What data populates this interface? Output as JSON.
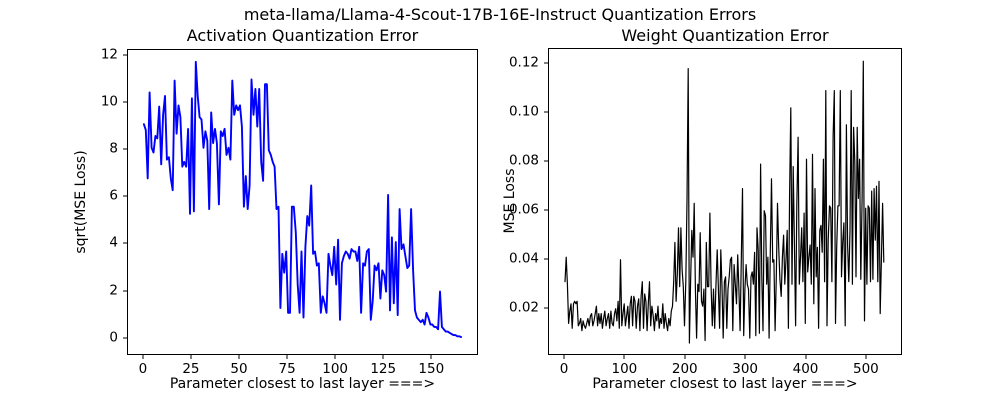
{
  "figure": {
    "suptitle": "meta-llama/Llama-4-Scout-17B-16E-Instruct Quantization Errors",
    "background": "#ffffff"
  },
  "chart_data": [
    {
      "type": "line",
      "title": "Activation Quantization Error",
      "xlabel": "Parameter closest to last layer ===>",
      "ylabel": "sqrt(MSE Loss)",
      "color": "#0000ff",
      "line_width": 1.9,
      "grid": false,
      "legend": null,
      "xlim": [
        -8.25,
        173.25
      ],
      "ylim": [
        -0.65,
        12.25
      ],
      "xticks": [
        0,
        25,
        50,
        75,
        100,
        125,
        150
      ],
      "xticklabels": [
        "0",
        "25",
        "50",
        "75",
        "100",
        "125",
        "150"
      ],
      "yticks": [
        0,
        2,
        4,
        6,
        8,
        10,
        12
      ],
      "yticklabels": [
        "0",
        "2",
        "4",
        "6",
        "8",
        "10",
        "12"
      ],
      "x_start": 0,
      "x_step": 1,
      "values": [
        9.1,
        8.85,
        6.8,
        10.45,
        8.1,
        7.9,
        8.6,
        8.5,
        9.85,
        7.4,
        9.5,
        10.3,
        7.6,
        7.7,
        6.8,
        6.3,
        10.95,
        8.7,
        9.9,
        9.4,
        7.3,
        7.5,
        7.3,
        8.9,
        5.3,
        10.2,
        5.4,
        11.75,
        10.3,
        9.4,
        9.3,
        8.1,
        8.8,
        8.4,
        5.5,
        9.6,
        8.3,
        8.9,
        8.3,
        5.7,
        8.8,
        8.6,
        8.9,
        7.8,
        8.1,
        7.6,
        10.95,
        9.5,
        9.9,
        9.7,
        9.9,
        9.0,
        5.6,
        6.9,
        5.5,
        6.5,
        11.0,
        9.5,
        10.6,
        9.0,
        10.6,
        7.5,
        6.7,
        10.8,
        10.8,
        8.0,
        7.8,
        7.5,
        7.3,
        5.5,
        5.6,
        1.3,
        3.6,
        2.8,
        3.7,
        1.1,
        1.1,
        5.6,
        5.6,
        4.5,
        2.3,
        1.1,
        3.7,
        0.9,
        3.9,
        5.2,
        4.8,
        6.5,
        3.6,
        3.7,
        3.1,
        3.2,
        1.1,
        1.8,
        1.5,
        1.1,
        3.6,
        3.1,
        2.7,
        3.9,
        2.3,
        4.2,
        0.8,
        3.2,
        3.5,
        3.7,
        3.6,
        3.4,
        3.8,
        3.7,
        3.7,
        3.3,
        3.9,
        1.1,
        3.2,
        3.1,
        3.7,
        3.8,
        0.8,
        1.6,
        3.1,
        2.9,
        3.2,
        1.7,
        2.9,
        2.7,
        2.0,
        6.1,
        1.2,
        4.3,
        1.5,
        4.1,
        1.0,
        5.5,
        3.8,
        4.0,
        3.5,
        3.0,
        3.1,
        5.5,
        2.9,
        1.2,
        0.9,
        0.8,
        0.7,
        0.8,
        0.6,
        1.1,
        0.9,
        0.6,
        0.6,
        0.5,
        0.5,
        0.4,
        2.0,
        0.5,
        0.4,
        0.3,
        0.3,
        0.25,
        0.2,
        0.15,
        0.15,
        0.1,
        0.1,
        0.07
      ]
    },
    {
      "type": "line",
      "title": "Weight Quantization Error",
      "xlabel": "Parameter closest to last layer ===>",
      "ylabel": "MSE Loss",
      "color": "#000000",
      "line_width": 1.2,
      "grid": false,
      "legend": null,
      "xlim": [
        -26.5,
        556.5
      ],
      "ylim": [
        0.0015,
        0.126
      ],
      "xticks": [
        0,
        100,
        200,
        300,
        400,
        500
      ],
      "xticklabels": [
        "0",
        "100",
        "200",
        "300",
        "400",
        "500"
      ],
      "yticks": [
        0.02,
        0.04,
        0.06,
        0.08,
        0.1,
        0.12
      ],
      "yticklabels": [
        "0.02",
        "0.04",
        "0.06",
        "0.08",
        "0.10",
        "0.12"
      ],
      "x_start": 0,
      "x_step": 2,
      "values": [
        0.031,
        0.041,
        0.03,
        0.014,
        0.019,
        0.022,
        0.012,
        0.022,
        0.023,
        0.022,
        0.023,
        0.013,
        0.014,
        0.016,
        0.011,
        0.015,
        0.013,
        0.012,
        0.014,
        0.016,
        0.013,
        0.017,
        0.018,
        0.013,
        0.015,
        0.018,
        0.021,
        0.013,
        0.018,
        0.014,
        0.018,
        0.012,
        0.016,
        0.019,
        0.013,
        0.016,
        0.018,
        0.012,
        0.019,
        0.014,
        0.013,
        0.018,
        0.02,
        0.015,
        0.023,
        0.012,
        0.04,
        0.013,
        0.018,
        0.022,
        0.013,
        0.017,
        0.021,
        0.012,
        0.022,
        0.025,
        0.013,
        0.025,
        0.023,
        0.012,
        0.021,
        0.024,
        0.011,
        0.025,
        0.031,
        0.012,
        0.026,
        0.023,
        0.011,
        0.022,
        0.031,
        0.013,
        0.021,
        0.017,
        0.011,
        0.018,
        0.015,
        0.021,
        0.012,
        0.016,
        0.014,
        0.022,
        0.012,
        0.018,
        0.014,
        0.011,
        0.016,
        0.013,
        0.019,
        0.021,
        0.031,
        0.047,
        0.023,
        0.034,
        0.053,
        0.029,
        0.053,
        0.036,
        0.029,
        0.013,
        0.031,
        0.064,
        0.118,
        0.006,
        0.031,
        0.052,
        0.041,
        0.063,
        0.028,
        0.008,
        0.03,
        0.027,
        0.051,
        0.023,
        0.021,
        0.028,
        0.007,
        0.047,
        0.029,
        0.029,
        0.059,
        0.029,
        0.013,
        0.028,
        0.012,
        0.029,
        0.044,
        0.028,
        0.012,
        0.044,
        0.029,
        0.008,
        0.031,
        0.033,
        0.012,
        0.028,
        0.033,
        0.04,
        0.041,
        0.011,
        0.038,
        0.03,
        0.022,
        0.042,
        0.028,
        0.011,
        0.04,
        0.069,
        0.009,
        0.028,
        0.038,
        0.03,
        0.028,
        0.008,
        0.033,
        0.035,
        0.03,
        0.043,
        0.009,
        0.053,
        0.044,
        0.01,
        0.079,
        0.033,
        0.011,
        0.06,
        0.058,
        0.03,
        0.041,
        0.008,
        0.043,
        0.073,
        0.039,
        0.04,
        0.011,
        0.033,
        0.063,
        0.045,
        0.032,
        0.025,
        0.041,
        0.05,
        0.03,
        0.04,
        0.052,
        0.012,
        0.067,
        0.102,
        0.03,
        0.078,
        0.047,
        0.013,
        0.062,
        0.09,
        0.03,
        0.041,
        0.053,
        0.031,
        0.059,
        0.014,
        0.081,
        0.035,
        0.041,
        0.046,
        0.03,
        0.083,
        0.022,
        0.069,
        0.033,
        0.045,
        0.012,
        0.052,
        0.054,
        0.043,
        0.081,
        0.031,
        0.109,
        0.013,
        0.048,
        0.062,
        0.061,
        0.031,
        0.09,
        0.109,
        0.014,
        0.045,
        0.062,
        0.062,
        0.109,
        0.033,
        0.047,
        0.055,
        0.013,
        0.095,
        0.046,
        0.031,
        0.052,
        0.109,
        0.03,
        0.094,
        0.08,
        0.033,
        0.094,
        0.065,
        0.081,
        0.032,
        0.065,
        0.121,
        0.015,
        0.061,
        0.03,
        0.062,
        0.061,
        0.031,
        0.068,
        0.032,
        0.069,
        0.048,
        0.07,
        0.031,
        0.072,
        0.018,
        0.04,
        0.063,
        0.039
      ]
    }
  ]
}
